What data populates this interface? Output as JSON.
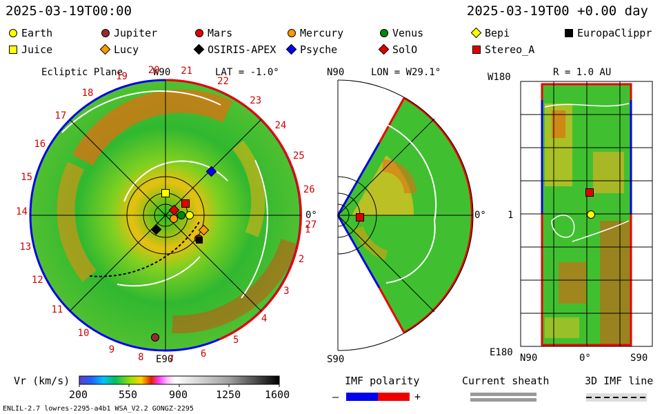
{
  "header": {
    "datetime_left": "2025-03-19T00:00",
    "datetime_right": "2025-03-19T00 +0.00 day"
  },
  "legend": [
    {
      "label": "Earth",
      "shape": "circle",
      "color": "#ffff00"
    },
    {
      "label": "Jupiter",
      "shape": "circle",
      "color": "#9a2a2a"
    },
    {
      "label": "Mars",
      "shape": "circle",
      "color": "#e00000"
    },
    {
      "label": "Mercury",
      "shape": "circle",
      "color": "#ff9900"
    },
    {
      "label": "Venus",
      "shape": "circle",
      "color": "#008800"
    },
    {
      "label": "Bepi",
      "shape": "diamond",
      "color": "#ffff00"
    },
    {
      "label": "EuropaClippr",
      "shape": "square",
      "color": "#000000"
    },
    {
      "label": "Juice",
      "shape": "square",
      "color": "#ffff00"
    },
    {
      "label": "Lucy",
      "shape": "diamond",
      "color": "#ff9900"
    },
    {
      "label": "OSIRIS-APEX",
      "shape": "diamond",
      "color": "#000000"
    },
    {
      "label": "Psyche",
      "shape": "diamond",
      "color": "#0000ee"
    },
    {
      "label": "SolO",
      "shape": "diamond",
      "color": "#e00000"
    },
    {
      "label": "Stereo_A",
      "shape": "square",
      "color": "#e00000"
    }
  ],
  "panels": {
    "ecliptic": {
      "title": "Ecliptic Plane",
      "top_label": "W90",
      "lat_label": "LAT = -1.0°",
      "bottom_label": "E90",
      "right_label": "0°",
      "ticks": [
        "20",
        "21",
        "22",
        "23",
        "24",
        "25",
        "26",
        "27",
        "19",
        "18",
        "17",
        "16",
        "15",
        "14",
        "13",
        "12",
        "11",
        "10",
        "9",
        "8",
        "7",
        "6",
        "5",
        "4",
        "3",
        "2",
        "1"
      ]
    },
    "meridional": {
      "top_label": "N90",
      "lon_label": "LON = W29.1°",
      "bottom_label": "S90",
      "right_label": "0°"
    },
    "radial": {
      "r_label": "R = 1.0 AU",
      "top_left": "W180",
      "mid_left": "1",
      "bottom_left": "E180",
      "bottom_axis": [
        "N90",
        "0°",
        "S90"
      ]
    }
  },
  "colorbar": {
    "title": "Vr (km/s)",
    "ticks": [
      "200",
      "550",
      "900",
      "1250",
      "1600"
    ],
    "min": 200,
    "max": 1600
  },
  "imf": {
    "title": "IMF polarity",
    "minus": "–",
    "plus": "+",
    "neg_color": "#0000ee",
    "pos_color": "#ee0000"
  },
  "sheath": {
    "title": "Current sheath"
  },
  "imf_line": {
    "title": "3D IMF line"
  },
  "footer": {
    "model": "ENLIL-2.7 lowres-2295-a4b1 WSA_V2.2 GONGZ-2295"
  }
}
